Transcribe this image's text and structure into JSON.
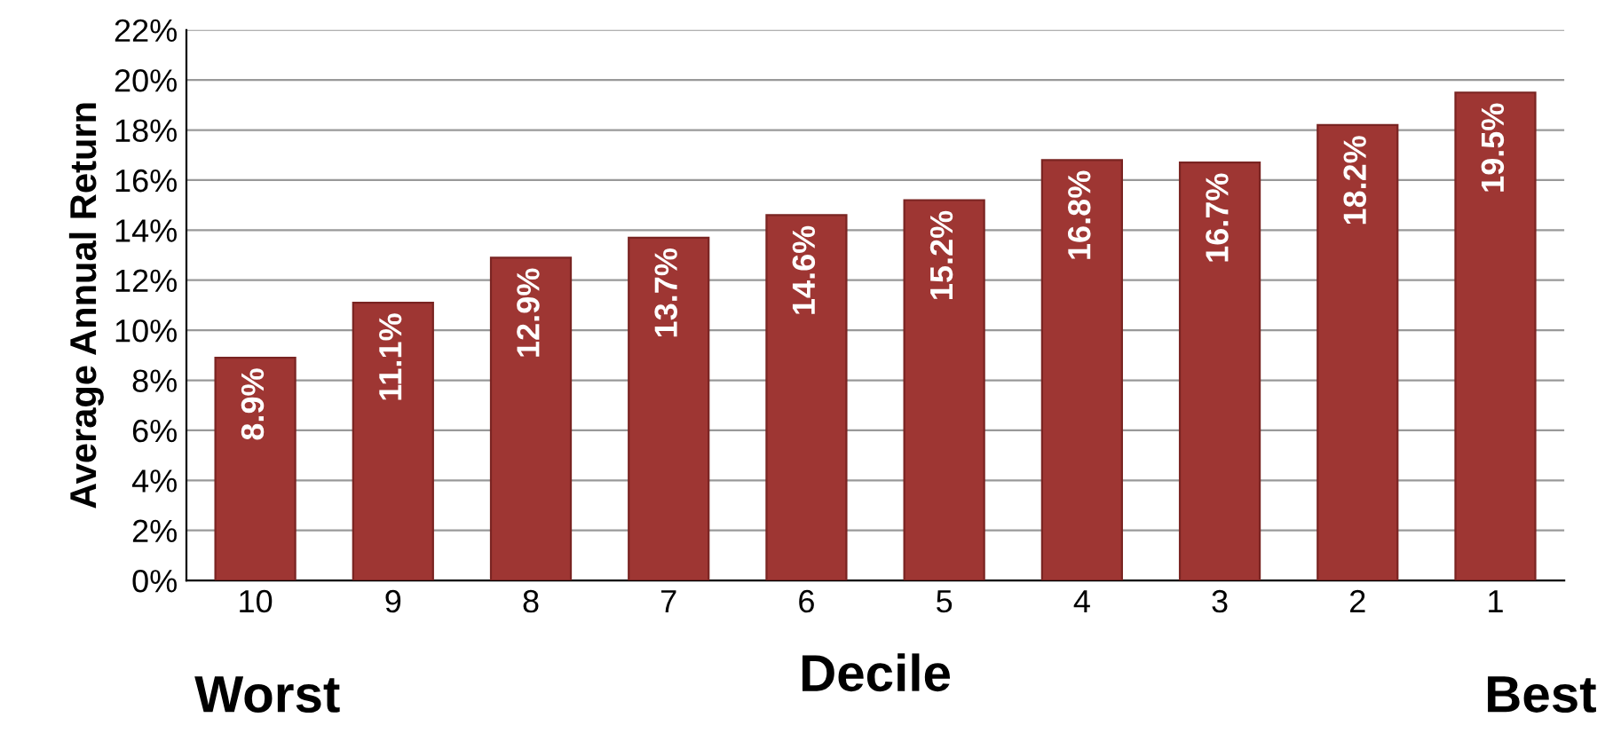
{
  "chart_data": {
    "type": "bar",
    "ylabel": "Average Annual Return",
    "xlabel": "Decile",
    "annotations": [
      "Worst",
      "Best"
    ],
    "categories": [
      "10",
      "9",
      "8",
      "7",
      "6",
      "5",
      "4",
      "3",
      "2",
      "1"
    ],
    "values": [
      8.9,
      11.1,
      12.9,
      13.7,
      14.6,
      15.2,
      16.8,
      16.7,
      18.2,
      19.5
    ],
    "value_labels": [
      "8.9%",
      "11.1%",
      "12.9%",
      "13.7%",
      "14.6%",
      "15.2%",
      "16.8%",
      "16.7%",
      "18.2%",
      "19.5%"
    ],
    "color": "#9e3633",
    "ylim": [
      0,
      22
    ],
    "yticks": [
      {
        "value": 0,
        "label": "0%"
      },
      {
        "value": 2,
        "label": "2%"
      },
      {
        "value": 4,
        "label": "4%"
      },
      {
        "value": 6,
        "label": "6%"
      },
      {
        "value": 8,
        "label": "8%"
      },
      {
        "value": 10,
        "label": "10%"
      },
      {
        "value": 12,
        "label": "12%"
      },
      {
        "value": 14,
        "label": "14%"
      },
      {
        "value": 16,
        "label": "16%"
      },
      {
        "value": 18,
        "label": "18%"
      },
      {
        "value": 20,
        "label": "20%"
      },
      {
        "value": 22,
        "label": "22%"
      }
    ],
    "grid": "y"
  }
}
